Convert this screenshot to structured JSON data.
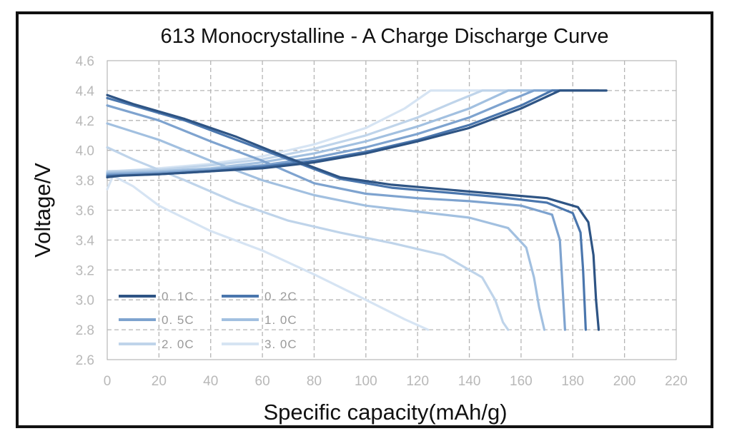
{
  "chart_data": {
    "type": "line",
    "title": "613 Monocrystalline - A Charge Discharge Curve",
    "xlabel": "Specific capacity(mAh/g)",
    "ylabel": "Voltage/V",
    "xlim": [
      0,
      220
    ],
    "ylim": [
      2.6,
      4.6
    ],
    "xticks": [
      "0",
      "20",
      "40",
      "60",
      "80",
      "100",
      "120",
      "140",
      "160",
      "180",
      "200",
      "220"
    ],
    "yticks": [
      "2.6",
      "2.8",
      "3.0",
      "3.2",
      "3.4",
      "3.6",
      "3.8",
      "4.0",
      "4.2",
      "4.4",
      "4.6"
    ],
    "grid": true,
    "legend_position": "bottom-left",
    "series": [
      {
        "name": "0. 1C",
        "color": "#2e5484",
        "charge": [
          [
            0,
            3.82
          ],
          [
            5,
            3.83
          ],
          [
            20,
            3.84
          ],
          [
            40,
            3.86
          ],
          [
            60,
            3.88
          ],
          [
            80,
            3.92
          ],
          [
            100,
            3.98
          ],
          [
            120,
            4.06
          ],
          [
            140,
            4.15
          ],
          [
            160,
            4.28
          ],
          [
            175,
            4.4
          ],
          [
            193,
            4.4
          ]
        ],
        "discharge": [
          [
            0,
            4.37
          ],
          [
            10,
            4.31
          ],
          [
            30,
            4.21
          ],
          [
            50,
            4.09
          ],
          [
            70,
            3.95
          ],
          [
            90,
            3.82
          ],
          [
            110,
            3.77
          ],
          [
            130,
            3.74
          ],
          [
            150,
            3.71
          ],
          [
            170,
            3.68
          ],
          [
            182,
            3.62
          ],
          [
            186,
            3.52
          ],
          [
            188,
            3.3
          ],
          [
            189,
            3.0
          ],
          [
            190,
            2.8
          ]
        ]
      },
      {
        "name": "0. 2C",
        "color": "#4a76ad",
        "charge": [
          [
            0,
            3.83
          ],
          [
            20,
            3.84
          ],
          [
            40,
            3.86
          ],
          [
            60,
            3.89
          ],
          [
            80,
            3.93
          ],
          [
            100,
            3.99
          ],
          [
            120,
            4.07
          ],
          [
            140,
            4.17
          ],
          [
            160,
            4.3
          ],
          [
            172,
            4.4
          ],
          [
            190,
            4.4
          ]
        ],
        "discharge": [
          [
            0,
            4.35
          ],
          [
            10,
            4.3
          ],
          [
            30,
            4.2
          ],
          [
            50,
            4.07
          ],
          [
            70,
            3.94
          ],
          [
            90,
            3.81
          ],
          [
            110,
            3.75
          ],
          [
            130,
            3.72
          ],
          [
            150,
            3.69
          ],
          [
            170,
            3.65
          ],
          [
            180,
            3.58
          ],
          [
            183,
            3.45
          ],
          [
            184,
            3.2
          ],
          [
            185,
            2.8
          ]
        ]
      },
      {
        "name": "0. 5C",
        "color": "#7ea3cf",
        "charge": [
          [
            0,
            3.84
          ],
          [
            20,
            3.85
          ],
          [
            40,
            3.87
          ],
          [
            60,
            3.9
          ],
          [
            80,
            3.95
          ],
          [
            100,
            4.02
          ],
          [
            120,
            4.11
          ],
          [
            140,
            4.22
          ],
          [
            155,
            4.33
          ],
          [
            165,
            4.4
          ],
          [
            185,
            4.4
          ]
        ],
        "discharge": [
          [
            0,
            4.3
          ],
          [
            20,
            4.2
          ],
          [
            40,
            4.06
          ],
          [
            60,
            3.93
          ],
          [
            80,
            3.78
          ],
          [
            100,
            3.71
          ],
          [
            120,
            3.68
          ],
          [
            140,
            3.66
          ],
          [
            160,
            3.63
          ],
          [
            172,
            3.57
          ],
          [
            175,
            3.4
          ],
          [
            176,
            3.1
          ],
          [
            177,
            2.8
          ]
        ]
      },
      {
        "name": "1. 0C",
        "color": "#a2c0e0",
        "charge": [
          [
            0,
            3.85
          ],
          [
            20,
            3.86
          ],
          [
            40,
            3.88
          ],
          [
            60,
            3.92
          ],
          [
            80,
            3.98
          ],
          [
            100,
            4.06
          ],
          [
            120,
            4.16
          ],
          [
            140,
            4.28
          ],
          [
            155,
            4.4
          ],
          [
            180,
            4.4
          ]
        ],
        "discharge": [
          [
            0,
            4.18
          ],
          [
            20,
            4.07
          ],
          [
            40,
            3.93
          ],
          [
            60,
            3.8
          ],
          [
            80,
            3.7
          ],
          [
            100,
            3.63
          ],
          [
            120,
            3.59
          ],
          [
            140,
            3.55
          ],
          [
            155,
            3.48
          ],
          [
            162,
            3.35
          ],
          [
            165,
            3.15
          ],
          [
            167,
            2.95
          ],
          [
            169,
            2.8
          ]
        ]
      },
      {
        "name": "2. 0C",
        "color": "#bfd4ea",
        "charge": [
          [
            0,
            3.86
          ],
          [
            20,
            3.87
          ],
          [
            40,
            3.9
          ],
          [
            60,
            3.94
          ],
          [
            80,
            4.01
          ],
          [
            100,
            4.1
          ],
          [
            120,
            4.22
          ],
          [
            135,
            4.33
          ],
          [
            145,
            4.4
          ],
          [
            175,
            4.4
          ]
        ],
        "discharge": [
          [
            0,
            4.02
          ],
          [
            10,
            3.94
          ],
          [
            30,
            3.8
          ],
          [
            50,
            3.65
          ],
          [
            70,
            3.53
          ],
          [
            90,
            3.45
          ],
          [
            110,
            3.38
          ],
          [
            130,
            3.3
          ],
          [
            145,
            3.15
          ],
          [
            150,
            3.0
          ],
          [
            153,
            2.85
          ],
          [
            155,
            2.8
          ]
        ]
      },
      {
        "name": "3. 0C",
        "color": "#d6e4f3",
        "charge": [
          [
            0,
            3.74
          ],
          [
            3,
            3.86
          ],
          [
            20,
            3.88
          ],
          [
            40,
            3.91
          ],
          [
            60,
            3.96
          ],
          [
            80,
            4.04
          ],
          [
            100,
            4.15
          ],
          [
            115,
            4.28
          ],
          [
            125,
            4.4
          ],
          [
            170,
            4.4
          ]
        ],
        "discharge": [
          [
            0,
            3.85
          ],
          [
            10,
            3.76
          ],
          [
            20,
            3.63
          ],
          [
            40,
            3.46
          ],
          [
            60,
            3.33
          ],
          [
            80,
            3.17
          ],
          [
            100,
            3.0
          ],
          [
            115,
            2.87
          ],
          [
            124,
            2.8
          ]
        ]
      }
    ]
  }
}
